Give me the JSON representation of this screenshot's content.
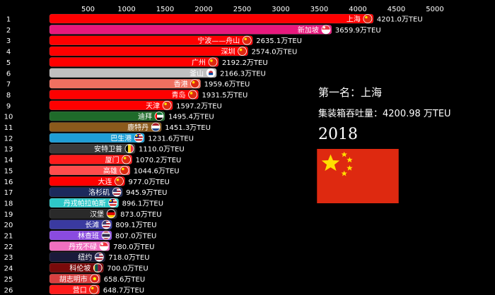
{
  "chart_data": {
    "type": "bar",
    "orientation": "horizontal",
    "unit": "万TEU",
    "xlim": [
      0,
      5000
    ],
    "xticks": [
      500,
      1000,
      1500,
      2000,
      2500,
      3000,
      3500,
      4000,
      4500,
      5000
    ],
    "year": "2018",
    "bars": [
      {
        "rank": "1",
        "label": "上海",
        "value": 4201.0,
        "value_label": "4201.0万TEU",
        "color": "#ff0000",
        "flag": "cn"
      },
      {
        "rank": "2",
        "label": "新加坡",
        "value": 3659.9,
        "value_label": "3659.9万TEU",
        "color": "#e8187d",
        "flag": "sg"
      },
      {
        "rank": "3",
        "label": "宁波——舟山",
        "value": 2635.1,
        "value_label": "2635.1万TEU",
        "color": "#ff0000",
        "flag": "cn"
      },
      {
        "rank": "4",
        "label": "深圳",
        "value": 2574.0,
        "value_label": "2574.0万TEU",
        "color": "#ff0000",
        "flag": "cn"
      },
      {
        "rank": "5",
        "label": "广州",
        "value": 2192.2,
        "value_label": "2192.2万TEU",
        "color": "#ff0000",
        "flag": "cn"
      },
      {
        "rank": "6",
        "label": "釜山",
        "value": 2166.3,
        "value_label": "2166.3万TEU",
        "color": "#c0c0c0",
        "flag": "kr"
      },
      {
        "rank": "7",
        "label": "香港",
        "value": 1959.6,
        "value_label": "1959.6万TEU",
        "color": "#f07060",
        "flag": "cn"
      },
      {
        "rank": "8",
        "label": "青岛",
        "value": 1931.5,
        "value_label": "1931.5万TEU",
        "color": "#ff0000",
        "flag": "cn"
      },
      {
        "rank": "9",
        "label": "天津",
        "value": 1597.2,
        "value_label": "1597.2万TEU",
        "color": "#ff0000",
        "flag": "cn"
      },
      {
        "rank": "10",
        "label": "迪拜",
        "value": 1495.4,
        "value_label": "1495.4万TEU",
        "color": "#1f6b2a",
        "flag": "ae"
      },
      {
        "rank": "11",
        "label": "鹿特丹",
        "value": 1451.3,
        "value_label": "1451.3万TEU",
        "color": "#8b5a1c",
        "flag": "nl"
      },
      {
        "rank": "12",
        "label": "巴生港",
        "value": 1231.6,
        "value_label": "1231.6万TEU",
        "color": "#1f9fd6",
        "flag": "my"
      },
      {
        "rank": "13",
        "label": "安特卫普",
        "value": 1110.0,
        "value_label": "1110.0万TEU",
        "color": "#3a3a3a",
        "flag": "be"
      },
      {
        "rank": "14",
        "label": "厦门",
        "value": 1070.2,
        "value_label": "1070.2万TEU",
        "color": "#ff1a1a",
        "flag": "cn"
      },
      {
        "rank": "15",
        "label": "高雄",
        "value": 1044.6,
        "value_label": "1044.6万TEU",
        "color": "#ff4d4d",
        "flag": "cn"
      },
      {
        "rank": "16",
        "label": "大连",
        "value": 977.0,
        "value_label": "977.0万TEU",
        "color": "#ff0000",
        "flag": "cn"
      },
      {
        "rank": "17",
        "label": "洛杉矶",
        "value": 945.9,
        "value_label": "945.9万TEU",
        "color": "#1c2a5c",
        "flag": "us"
      },
      {
        "rank": "18",
        "label": "丹戎帕拉帕斯",
        "value": 896.1,
        "value_label": "896.1万TEU",
        "color": "#2ec8c8",
        "flag": "my"
      },
      {
        "rank": "19",
        "label": "汉堡",
        "value": 873.0,
        "value_label": "873.0万TEU",
        "color": "#2a2a2a",
        "flag": "de"
      },
      {
        "rank": "20",
        "label": "长滩",
        "value": 809.1,
        "value_label": "809.1万TEU",
        "color": "#3a3aa0",
        "flag": "us"
      },
      {
        "rank": "21",
        "label": "林查班",
        "value": 807.0,
        "value_label": "807.0万TEU",
        "color": "#8a4be0",
        "flag": "th"
      },
      {
        "rank": "22",
        "label": "丹戎不碌",
        "value": 780.0,
        "value_label": "780.0万TEU",
        "color": "#f070c0",
        "flag": "sg"
      },
      {
        "rank": "23",
        "label": "纽约",
        "value": 718.0,
        "value_label": "718.0万TEU",
        "color": "#1a1a3a",
        "flag": "us"
      },
      {
        "rank": "24",
        "label": "科伦坡",
        "value": 700.0,
        "value_label": "700.0万TEU",
        "color": "#7a0a0a",
        "flag": "lk"
      },
      {
        "rank": "25",
        "label": "胡志明市",
        "value": 658.6,
        "value_label": "658.6万TEU",
        "color": "#d94040",
        "flag": "vn"
      },
      {
        "rank": "26",
        "label": "营口",
        "value": 648.7,
        "value_label": "648.7万TEU",
        "color": "#ff1a1a",
        "flag": "cn"
      }
    ]
  },
  "info": {
    "first_title": "第一名：上海",
    "throughput": "集装箱吞吐量：4200.98 万TEU",
    "year": "2018"
  }
}
